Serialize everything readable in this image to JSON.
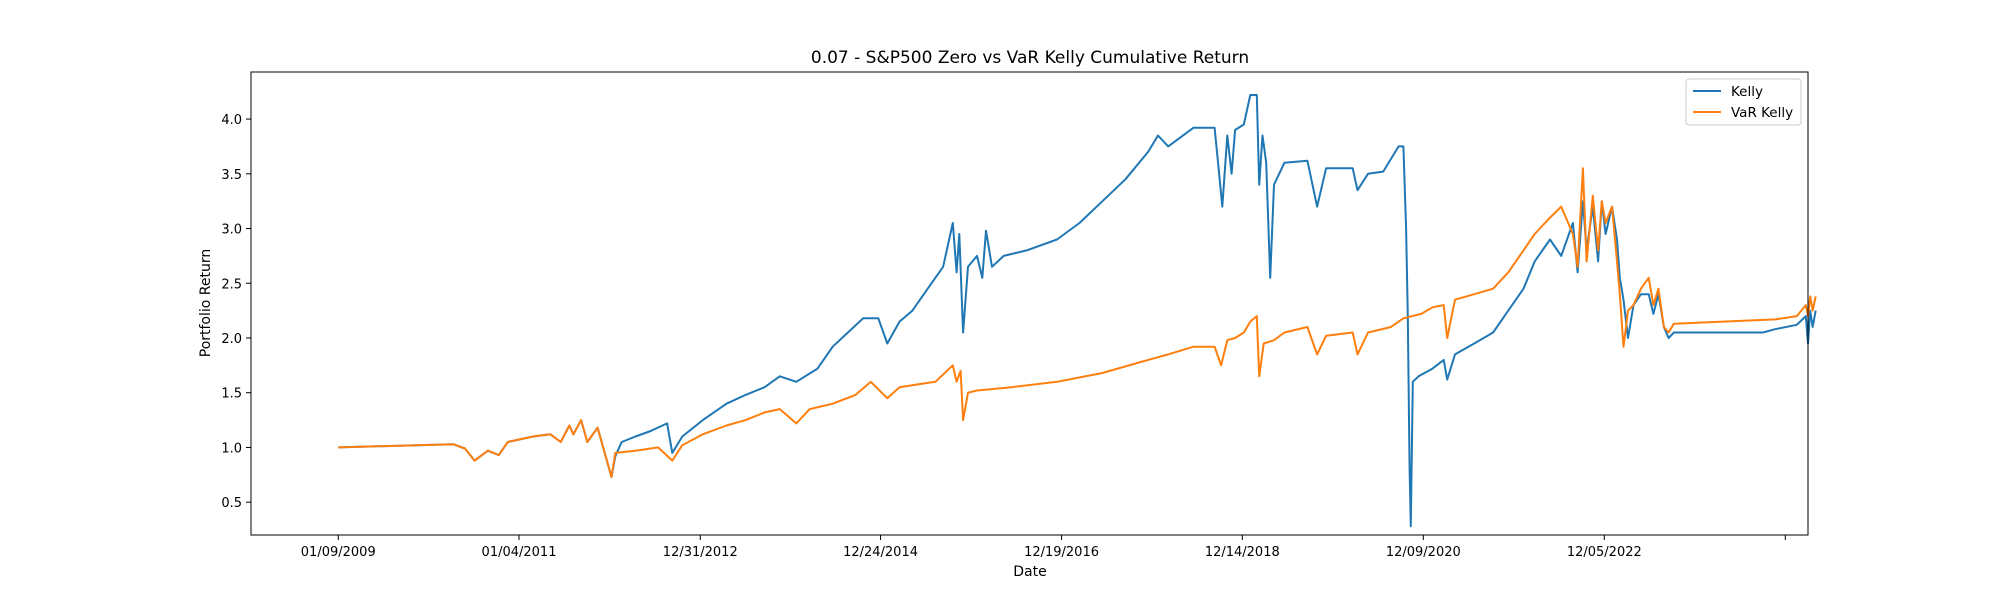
{
  "chart_data": {
    "type": "line",
    "title": "0.07 - S&P500 Zero vs VaR Kelly Cumulative Return",
    "xlabel": "Date",
    "ylabel": "Portfolio Return",
    "x_ticks": [
      "01/09/2009",
      "01/04/2011",
      "12/31/2012",
      "12/24/2014",
      "12/19/2016",
      "12/14/2018",
      "12/09/2020",
      "12/05/2022"
    ],
    "x_range": [
      "2008-01-25",
      "2025-03-01"
    ],
    "y_ticks": [
      0.5,
      1.0,
      1.5,
      2.0,
      2.5,
      3.0,
      3.5,
      4.0
    ],
    "ylim": [
      0.2,
      4.43
    ],
    "legend_position": "top-right",
    "grid": false,
    "series": [
      {
        "name": "Kelly",
        "color": "#1f77b4",
        "points": [
          [
            "2009-01-09",
            1.0
          ],
          [
            "2010-04-15",
            1.03
          ],
          [
            "2010-06-01",
            0.99
          ],
          [
            "2010-07-10",
            0.88
          ],
          [
            "2010-09-01",
            0.97
          ],
          [
            "2010-10-15",
            0.93
          ],
          [
            "2010-11-20",
            1.05
          ],
          [
            "2011-03-01",
            1.1
          ],
          [
            "2011-05-10",
            1.12
          ],
          [
            "2011-06-20",
            1.05
          ],
          [
            "2011-07-25",
            1.2
          ],
          [
            "2011-08-10",
            1.12
          ],
          [
            "2011-09-10",
            1.25
          ],
          [
            "2011-10-05",
            1.05
          ],
          [
            "2011-11-15",
            1.18
          ],
          [
            "2012-01-10",
            0.73
          ],
          [
            "2012-01-25",
            0.92
          ],
          [
            "2012-02-20",
            1.05
          ],
          [
            "2012-04-15",
            1.1
          ],
          [
            "2012-06-15",
            1.15
          ],
          [
            "2012-08-20",
            1.22
          ],
          [
            "2012-09-10",
            0.95
          ],
          [
            "2012-10-20",
            1.1
          ],
          [
            "2013-01-10",
            1.25
          ],
          [
            "2013-04-15",
            1.4
          ],
          [
            "2013-07-01",
            1.48
          ],
          [
            "2013-09-15",
            1.55
          ],
          [
            "2013-11-15",
            1.65
          ],
          [
            "2014-01-20",
            1.6
          ],
          [
            "2014-04-15",
            1.72
          ],
          [
            "2014-06-15",
            1.92
          ],
          [
            "2014-08-15",
            2.05
          ],
          [
            "2014-10-15",
            2.18
          ],
          [
            "2014-12-15",
            2.18
          ],
          [
            "2015-01-20",
            1.95
          ],
          [
            "2015-03-10",
            2.15
          ],
          [
            "2015-05-01",
            2.25
          ],
          [
            "2015-07-01",
            2.45
          ],
          [
            "2015-09-01",
            2.65
          ],
          [
            "2015-10-10",
            3.05
          ],
          [
            "2015-10-25",
            2.6
          ],
          [
            "2015-11-05",
            2.95
          ],
          [
            "2015-11-20",
            2.05
          ],
          [
            "2015-12-10",
            2.65
          ],
          [
            "2016-01-15",
            2.75
          ],
          [
            "2016-02-05",
            2.55
          ],
          [
            "2016-02-20",
            2.98
          ],
          [
            "2016-03-15",
            2.65
          ],
          [
            "2016-05-01",
            2.75
          ],
          [
            "2016-08-01",
            2.8
          ],
          [
            "2016-12-01",
            2.9
          ],
          [
            "2017-03-01",
            3.05
          ],
          [
            "2017-06-01",
            3.25
          ],
          [
            "2017-09-01",
            3.45
          ],
          [
            "2017-12-01",
            3.7
          ],
          [
            "2018-01-10",
            3.85
          ],
          [
            "2018-02-20",
            3.75
          ],
          [
            "2018-06-01",
            3.92
          ],
          [
            "2018-08-25",
            3.92
          ],
          [
            "2018-09-10",
            3.55
          ],
          [
            "2018-09-25",
            3.2
          ],
          [
            "2018-10-15",
            3.85
          ],
          [
            "2018-11-01",
            3.5
          ],
          [
            "2018-11-15",
            3.9
          ],
          [
            "2018-12-20",
            3.95
          ],
          [
            "2019-01-15",
            4.22
          ],
          [
            "2019-02-10",
            4.22
          ],
          [
            "2019-02-20",
            3.4
          ],
          [
            "2019-03-05",
            3.85
          ],
          [
            "2019-03-20",
            3.6
          ],
          [
            "2019-04-05",
            2.55
          ],
          [
            "2019-04-20",
            3.4
          ],
          [
            "2019-06-01",
            3.6
          ],
          [
            "2019-09-01",
            3.62
          ],
          [
            "2019-10-10",
            3.2
          ],
          [
            "2019-11-15",
            3.55
          ],
          [
            "2020-03-01",
            3.55
          ],
          [
            "2020-03-20",
            3.35
          ],
          [
            "2020-05-01",
            3.5
          ],
          [
            "2020-07-01",
            3.52
          ],
          [
            "2020-09-01",
            3.75
          ],
          [
            "2020-09-20",
            3.75
          ],
          [
            "2020-10-01",
            3.0
          ],
          [
            "2020-10-08",
            2.2
          ],
          [
            "2020-10-15",
            0.8
          ],
          [
            "2020-10-20",
            0.28
          ],
          [
            "2020-10-28",
            1.6
          ],
          [
            "2020-11-20",
            1.65
          ],
          [
            "2021-01-15",
            1.72
          ],
          [
            "2021-03-01",
            1.8
          ],
          [
            "2021-03-15",
            1.62
          ],
          [
            "2021-04-15",
            1.85
          ],
          [
            "2021-07-01",
            1.95
          ],
          [
            "2021-09-15",
            2.05
          ],
          [
            "2021-11-15",
            2.25
          ],
          [
            "2022-01-15",
            2.45
          ],
          [
            "2022-03-01",
            2.7
          ],
          [
            "2022-05-01",
            2.9
          ],
          [
            "2022-06-15",
            2.75
          ],
          [
            "2022-08-01",
            3.05
          ],
          [
            "2022-08-20",
            2.6
          ],
          [
            "2022-09-10",
            3.25
          ],
          [
            "2022-09-25",
            2.8
          ],
          [
            "2022-10-20",
            3.2
          ],
          [
            "2022-11-10",
            2.7
          ],
          [
            "2022-11-25",
            3.25
          ],
          [
            "2022-12-10",
            2.95
          ],
          [
            "2023-01-05",
            3.2
          ],
          [
            "2023-01-25",
            2.9
          ],
          [
            "2023-02-05",
            2.55
          ],
          [
            "2023-02-20",
            2.35
          ],
          [
            "2023-03-10",
            2.0
          ],
          [
            "2023-04-01",
            2.3
          ],
          [
            "2023-05-01",
            2.4
          ],
          [
            "2023-06-01",
            2.4
          ],
          [
            "2023-06-20",
            2.22
          ],
          [
            "2023-07-10",
            2.4
          ],
          [
            "2023-08-01",
            2.1
          ],
          [
            "2023-08-20",
            2.0
          ],
          [
            "2023-09-10",
            2.05
          ],
          [
            "2024-09-01",
            2.05
          ],
          [
            "2024-10-20",
            2.08
          ],
          [
            "2025-01-15",
            2.12
          ],
          [
            "2025-02-20",
            2.2
          ],
          [
            "2025-03-01",
            1.95
          ],
          [
            "2025-03-10",
            2.25
          ],
          [
            "2025-03-20",
            2.1
          ],
          [
            "2025-04-01",
            2.25
          ]
        ]
      },
      {
        "name": "VaR Kelly",
        "color": "#ff7f0e",
        "points": [
          [
            "2009-01-09",
            1.0
          ],
          [
            "2010-04-15",
            1.03
          ],
          [
            "2010-06-01",
            0.99
          ],
          [
            "2010-07-10",
            0.88
          ],
          [
            "2010-09-01",
            0.97
          ],
          [
            "2010-10-15",
            0.93
          ],
          [
            "2010-11-20",
            1.05
          ],
          [
            "2011-03-01",
            1.1
          ],
          [
            "2011-05-10",
            1.12
          ],
          [
            "2011-06-20",
            1.05
          ],
          [
            "2011-07-25",
            1.2
          ],
          [
            "2011-08-10",
            1.12
          ],
          [
            "2011-09-10",
            1.25
          ],
          [
            "2011-10-05",
            1.05
          ],
          [
            "2011-11-15",
            1.18
          ],
          [
            "2012-01-10",
            0.73
          ],
          [
            "2012-01-25",
            0.95
          ],
          [
            "2012-04-15",
            0.97
          ],
          [
            "2012-07-15",
            1.0
          ],
          [
            "2012-09-10",
            0.88
          ],
          [
            "2012-10-20",
            1.02
          ],
          [
            "2013-01-10",
            1.12
          ],
          [
            "2013-04-15",
            1.2
          ],
          [
            "2013-07-01",
            1.25
          ],
          [
            "2013-09-15",
            1.32
          ],
          [
            "2013-11-15",
            1.35
          ],
          [
            "2014-01-20",
            1.22
          ],
          [
            "2014-03-15",
            1.35
          ],
          [
            "2014-06-15",
            1.4
          ],
          [
            "2014-09-15",
            1.48
          ],
          [
            "2014-11-15",
            1.6
          ],
          [
            "2015-01-20",
            1.45
          ],
          [
            "2015-03-10",
            1.55
          ],
          [
            "2015-06-01",
            1.58
          ],
          [
            "2015-08-01",
            1.6
          ],
          [
            "2015-10-10",
            1.75
          ],
          [
            "2015-10-25",
            1.6
          ],
          [
            "2015-11-10",
            1.7
          ],
          [
            "2015-11-20",
            1.25
          ],
          [
            "2015-12-10",
            1.5
          ],
          [
            "2016-01-15",
            1.52
          ],
          [
            "2016-06-01",
            1.55
          ],
          [
            "2016-12-01",
            1.6
          ],
          [
            "2017-06-01",
            1.68
          ],
          [
            "2017-12-01",
            1.8
          ],
          [
            "2018-02-20",
            1.85
          ],
          [
            "2018-06-01",
            1.92
          ],
          [
            "2018-08-25",
            1.92
          ],
          [
            "2018-09-20",
            1.75
          ],
          [
            "2018-10-15",
            1.98
          ],
          [
            "2018-11-15",
            2.0
          ],
          [
            "2018-12-20",
            2.05
          ],
          [
            "2019-01-15",
            2.15
          ],
          [
            "2019-02-10",
            2.2
          ],
          [
            "2019-02-20",
            1.65
          ],
          [
            "2019-03-10",
            1.95
          ],
          [
            "2019-04-20",
            1.98
          ],
          [
            "2019-06-01",
            2.05
          ],
          [
            "2019-09-01",
            2.1
          ],
          [
            "2019-10-10",
            1.85
          ],
          [
            "2019-11-15",
            2.02
          ],
          [
            "2020-03-01",
            2.05
          ],
          [
            "2020-03-20",
            1.85
          ],
          [
            "2020-05-01",
            2.05
          ],
          [
            "2020-08-01",
            2.1
          ],
          [
            "2020-09-20",
            2.18
          ],
          [
            "2020-12-01",
            2.22
          ],
          [
            "2021-01-15",
            2.28
          ],
          [
            "2021-03-01",
            2.3
          ],
          [
            "2021-03-15",
            2.0
          ],
          [
            "2021-04-15",
            2.35
          ],
          [
            "2021-07-01",
            2.4
          ],
          [
            "2021-09-15",
            2.45
          ],
          [
            "2021-11-15",
            2.6
          ],
          [
            "2022-01-15",
            2.8
          ],
          [
            "2022-03-01",
            2.95
          ],
          [
            "2022-05-01",
            3.1
          ],
          [
            "2022-06-15",
            3.2
          ],
          [
            "2022-08-01",
            2.95
          ],
          [
            "2022-08-20",
            2.65
          ],
          [
            "2022-09-10",
            3.55
          ],
          [
            "2022-09-25",
            2.7
          ],
          [
            "2022-10-20",
            3.3
          ],
          [
            "2022-11-10",
            2.8
          ],
          [
            "2022-11-25",
            3.25
          ],
          [
            "2022-12-10",
            3.05
          ],
          [
            "2023-01-05",
            3.2
          ],
          [
            "2023-01-25",
            2.7
          ],
          [
            "2023-02-05",
            2.4
          ],
          [
            "2023-02-20",
            1.92
          ],
          [
            "2023-03-10",
            2.25
          ],
          [
            "2023-04-01",
            2.3
          ],
          [
            "2023-05-01",
            2.45
          ],
          [
            "2023-06-01",
            2.55
          ],
          [
            "2023-06-20",
            2.3
          ],
          [
            "2023-07-10",
            2.45
          ],
          [
            "2023-08-01",
            2.1
          ],
          [
            "2023-08-20",
            2.05
          ],
          [
            "2023-09-10",
            2.13
          ],
          [
            "2024-10-20",
            2.17
          ],
          [
            "2025-01-15",
            2.2
          ],
          [
            "2025-02-20",
            2.3
          ],
          [
            "2025-03-01",
            2.2
          ],
          [
            "2025-03-10",
            2.38
          ],
          [
            "2025-03-20",
            2.25
          ],
          [
            "2025-04-01",
            2.38
          ]
        ]
      }
    ]
  }
}
